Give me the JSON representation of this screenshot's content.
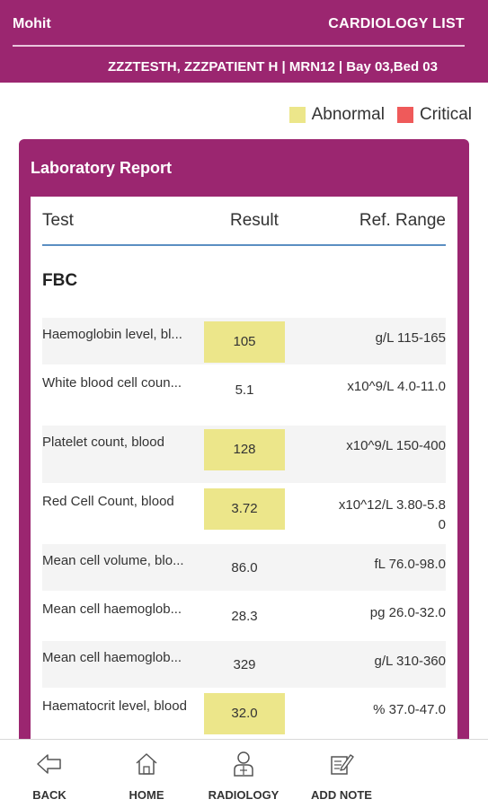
{
  "header": {
    "user": "Mohit",
    "list_title": "CARDIOLOGY LIST",
    "patient_info": "ZZZTESTH, ZZZPATIENT H | MRN12 | Bay 03,Bed 03"
  },
  "legend": {
    "abnormal_label": "Abnormal",
    "critical_label": "Critical",
    "abnormal_color": "#ece68a",
    "critical_color": "#ef5a5a"
  },
  "card": {
    "title": "Laboratory Report"
  },
  "table": {
    "headers": {
      "test": "Test",
      "result": "Result",
      "ref_range": "Ref. Range"
    },
    "section": "FBC",
    "rows": [
      {
        "name": "Haemoglobin level, bl...",
        "result": "105",
        "ref": "g/L 115-165",
        "flag": "abnormal"
      },
      {
        "name": "White blood cell coun...",
        "result": "5.1",
        "ref": "x10^9/L 4.0-11.0",
        "flag": "normal"
      },
      {
        "name": "Platelet count, blood",
        "result": "128",
        "ref": "x10^9/L 150-400",
        "flag": "abnormal"
      },
      {
        "name": "Red Cell Count, blood",
        "result": "3.72",
        "ref": "x10^12/L 3.80-5.80",
        "flag": "abnormal"
      },
      {
        "name": "Mean cell volume, blo...",
        "result": "86.0",
        "ref": "fL 76.0-98.0",
        "flag": "normal"
      },
      {
        "name": "Mean cell haemoglob...",
        "result": "28.3",
        "ref": "pg 26.0-32.0",
        "flag": "normal"
      },
      {
        "name": "Mean cell haemoglob...",
        "result": "329",
        "ref": "g/L 310-360",
        "flag": "normal"
      },
      {
        "name": "Haematocrit level, blood",
        "result": "32.0",
        "ref": "% 37.0-47.0",
        "flag": "abnormal"
      }
    ]
  },
  "footer": {
    "back": "BACK",
    "home": "HOME",
    "radiology": "RADIOLOGY",
    "add_note": "ADD NOTE"
  },
  "colors": {
    "brand": "#9b2670",
    "header_rule": "#5b8fc2"
  }
}
